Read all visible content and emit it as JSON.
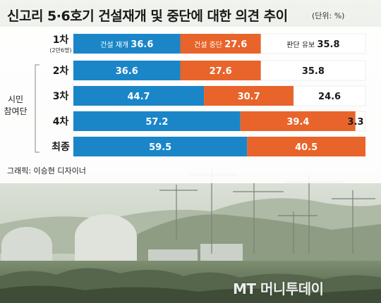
{
  "header": {
    "title": "신고리 5·6호기 건설재개 및 중단에 대한 의견 추이",
    "unit": "(단위: %)"
  },
  "group_label": {
    "line1": "시민",
    "line2": "참여단"
  },
  "credit": "그래픽: 이승현 디자이너",
  "watermark": "MT 머니투데이",
  "colors": {
    "resume": "#1a86c8",
    "stop": "#e8642a",
    "undecided": "#ffffff",
    "frame": "#ffffff"
  },
  "chart_data": {
    "type": "bar",
    "orientation": "horizontal",
    "stacked": true,
    "title": "신고리 5·6호기 건설재개 및 중단에 대한 의견 추이",
    "unit": "(단위: %)",
    "categories": [
      {
        "label": "1차",
        "sublabel": "(2만6명)"
      },
      {
        "label": "2차",
        "sublabel": ""
      },
      {
        "label": "3차",
        "sublabel": ""
      },
      {
        "label": "4차",
        "sublabel": ""
      },
      {
        "label": "최종",
        "sublabel": ""
      }
    ],
    "series": [
      {
        "name": "건설 재개",
        "values": [
          36.6,
          36.6,
          44.7,
          57.2,
          59.5
        ]
      },
      {
        "name": "건설 중단",
        "values": [
          27.6,
          27.6,
          30.7,
          39.4,
          40.5
        ]
      },
      {
        "name": "판단 유보",
        "values": [
          35.8,
          35.8,
          24.6,
          3.3,
          null
        ]
      }
    ],
    "xlim": [
      0,
      100
    ]
  }
}
